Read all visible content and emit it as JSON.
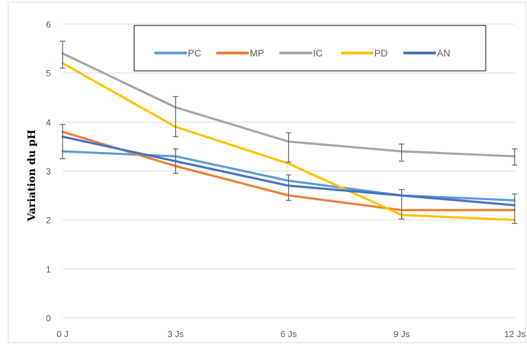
{
  "chart_data": {
    "type": "line",
    "title": "",
    "xlabel": "",
    "ylabel": "Variation du pH",
    "categories": [
      "0 J",
      "3 Js",
      "6 Js",
      "9 Js",
      "12 Js"
    ],
    "ylim": [
      0,
      6
    ],
    "yticks": [
      "0",
      "1",
      "2",
      "3",
      "4",
      "5",
      "6"
    ],
    "grid": "horizontal",
    "legend_position": "top",
    "series": [
      {
        "name": "PC",
        "color": "#5B9BD5",
        "values": [
          3.4,
          3.3,
          2.8,
          2.5,
          2.4
        ]
      },
      {
        "name": "MP",
        "color": "#ED7D31",
        "values": [
          3.8,
          3.1,
          2.5,
          2.2,
          2.2
        ]
      },
      {
        "name": "IC",
        "color": "#A5A5A5",
        "values": [
          5.4,
          4.3,
          3.6,
          3.4,
          3.3
        ]
      },
      {
        "name": "PD",
        "color": "#FFC000",
        "values": [
          5.2,
          3.9,
          3.15,
          2.1,
          2.0
        ]
      },
      {
        "name": "AN",
        "color": "#4472C4",
        "values": [
          3.7,
          3.2,
          2.7,
          2.5,
          2.3
        ]
      }
    ],
    "error_bars": {
      "color": "#595959",
      "bars": [
        {
          "x": 0,
          "low": 5.1,
          "high": 5.65
        },
        {
          "x": 0,
          "low": 3.25,
          "high": 3.95
        },
        {
          "x": 1,
          "low": 3.7,
          "high": 4.52
        },
        {
          "x": 1,
          "low": 2.95,
          "high": 3.45
        },
        {
          "x": 2,
          "low": 3.18,
          "high": 3.78
        },
        {
          "x": 2,
          "low": 2.4,
          "high": 2.92
        },
        {
          "x": 3,
          "low": 3.2,
          "high": 3.55
        },
        {
          "x": 3,
          "low": 2.02,
          "high": 2.62
        },
        {
          "x": 4,
          "low": 3.12,
          "high": 3.45
        },
        {
          "x": 4,
          "low": 1.93,
          "high": 2.53
        }
      ]
    }
  }
}
